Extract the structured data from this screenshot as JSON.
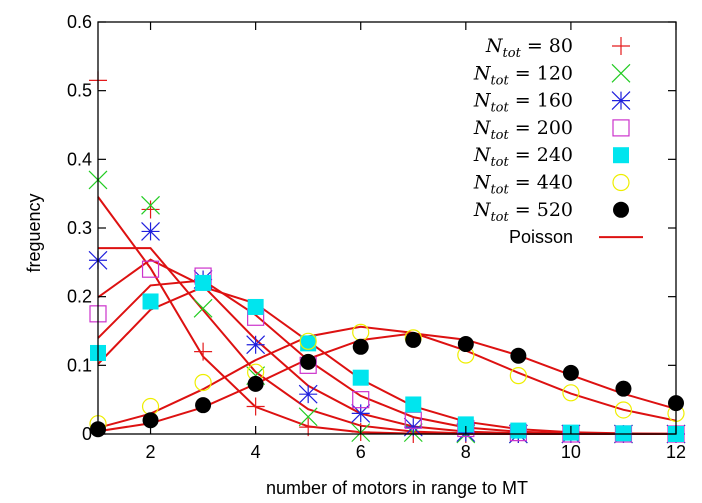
{
  "chart_data": {
    "type": "scatter",
    "title": "",
    "xlabel": "number of motors in range to MT",
    "ylabel": "freguency",
    "xlim": [
      1,
      12
    ],
    "ylim": [
      0,
      0.6
    ],
    "xticks": [
      2,
      4,
      6,
      8,
      10,
      12
    ],
    "yticks": [
      0,
      0.1,
      0.2,
      0.3,
      0.4,
      0.5,
      0.6
    ],
    "xtick_labels": [
      "2",
      "4",
      "6",
      "8",
      "10",
      "12"
    ],
    "ytick_labels": [
      "0",
      "0.1",
      "0.2",
      "0.3",
      "0.4",
      "0.5",
      "0.6"
    ],
    "grid": false,
    "legend_position": "top-right",
    "series": [
      {
        "name": "N_tot = 80",
        "legend_var": "N",
        "legend_sub": "tot",
        "legend_rest": " = 80",
        "marker": "plus",
        "color": "#e41a1c",
        "x": [
          1,
          2,
          3,
          4,
          5,
          6,
          7,
          8,
          9,
          10,
          11,
          12
        ],
        "y": [
          0.515,
          0.327,
          0.12,
          0.04,
          0.01,
          0.003,
          0,
          0,
          0,
          0,
          0,
          0
        ]
      },
      {
        "name": "N_tot = 120",
        "legend_var": "N",
        "legend_sub": "tot",
        "legend_rest": " = 120",
        "marker": "cross",
        "color": "#22cc22",
        "x": [
          1,
          2,
          3,
          4,
          5,
          6,
          7,
          8,
          9,
          10,
          11,
          12
        ],
        "y": [
          0.37,
          0.333,
          0.183,
          0.085,
          0.025,
          0.002,
          0.002,
          0,
          0,
          0,
          0,
          0
        ]
      },
      {
        "name": "N_tot = 160",
        "legend_var": "N",
        "legend_sub": "tot",
        "legend_rest": " = 160",
        "marker": "star",
        "color": "#2020dd",
        "x": [
          1,
          2,
          3,
          4,
          5,
          6,
          7,
          8,
          9,
          10,
          11,
          12
        ],
        "y": [
          0.253,
          0.295,
          0.225,
          0.13,
          0.058,
          0.03,
          0.01,
          0.002,
          0,
          0,
          0,
          0
        ]
      },
      {
        "name": "N_tot = 200",
        "legend_var": "N",
        "legend_sub": "tot",
        "legend_rest": " = 200",
        "marker": "square-open",
        "color": "#cc33cc",
        "x": [
          1,
          2,
          3,
          4,
          5,
          6,
          7,
          8,
          9,
          10,
          11,
          12
        ],
        "y": [
          0.175,
          0.24,
          0.23,
          0.17,
          0.1,
          0.05,
          0.02,
          0.008,
          0.002,
          0,
          0,
          0
        ]
      },
      {
        "name": "N_tot = 240",
        "legend_var": "N",
        "legend_sub": "tot",
        "legend_rest": " = 240",
        "marker": "square-filled",
        "color": "#00e5ee",
        "x": [
          1,
          2,
          3,
          4,
          5,
          6,
          7,
          8,
          9,
          10,
          11,
          12
        ],
        "y": [
          0.118,
          0.193,
          0.22,
          0.185,
          0.132,
          0.082,
          0.043,
          0.014,
          0.005,
          0.002,
          0.001,
          0
        ]
      },
      {
        "name": "N_tot = 440",
        "legend_var": "N",
        "legend_sub": "tot",
        "legend_rest": " = 440",
        "marker": "circle-open",
        "color": "#eeee00",
        "x": [
          1,
          2,
          3,
          4,
          5,
          6,
          7,
          8,
          9,
          10,
          11,
          12
        ],
        "y": [
          0.015,
          0.04,
          0.075,
          0.09,
          0.135,
          0.148,
          0.14,
          0.115,
          0.085,
          0.06,
          0.035,
          0.03
        ]
      },
      {
        "name": "N_tot = 520",
        "legend_var": "N",
        "legend_sub": "tot",
        "legend_rest": " = 520",
        "marker": "circle-filled",
        "color": "#000000",
        "x": [
          1,
          2,
          3,
          4,
          5,
          6,
          7,
          8,
          9,
          10,
          11,
          12
        ],
        "y": [
          0.007,
          0.02,
          0.042,
          0.073,
          0.105,
          0.127,
          0.137,
          0.131,
          0.114,
          0.089,
          0.066,
          0.045
        ]
      },
      {
        "name": "Poisson",
        "marker": "line",
        "color": "#dd1111",
        "is_fit": true,
        "means": [
          1.4,
          2.0,
          2.55,
          3.1,
          3.55,
          6.6,
          7.5
        ]
      }
    ]
  }
}
